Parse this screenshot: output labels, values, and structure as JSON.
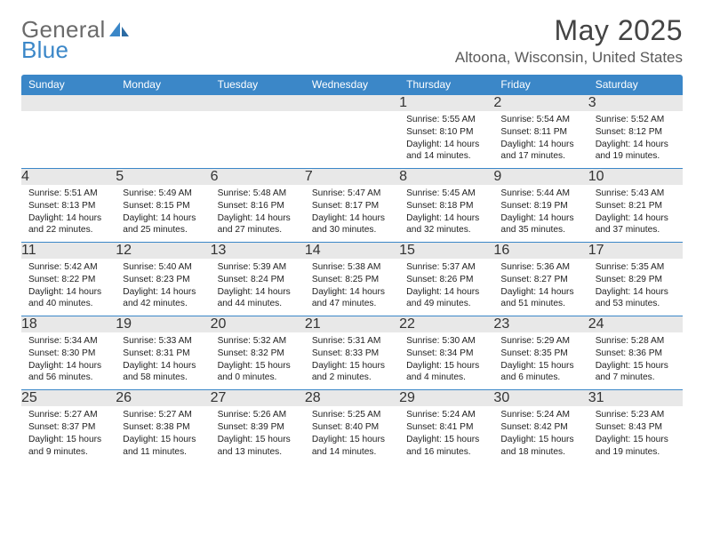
{
  "brand": {
    "word1": "General",
    "word2": "Blue"
  },
  "header": {
    "title": "May 2025",
    "location": "Altoona, Wisconsin, United States"
  },
  "colors": {
    "accent": "#3b87c8",
    "dayHeadBg": "#e8e8e8",
    "pageBg": "#ffffff",
    "textPrimary": "#333333",
    "textMuted": "#555555"
  },
  "dayNames": [
    "Sunday",
    "Monday",
    "Tuesday",
    "Wednesday",
    "Thursday",
    "Friday",
    "Saturday"
  ],
  "weeks": [
    {
      "days": [
        null,
        null,
        null,
        null,
        {
          "num": "1",
          "sunrise": "5:55 AM",
          "sunset": "8:10 PM",
          "daylight": "14 hours and 14 minutes."
        },
        {
          "num": "2",
          "sunrise": "5:54 AM",
          "sunset": "8:11 PM",
          "daylight": "14 hours and 17 minutes."
        },
        {
          "num": "3",
          "sunrise": "5:52 AM",
          "sunset": "8:12 PM",
          "daylight": "14 hours and 19 minutes."
        }
      ]
    },
    {
      "days": [
        {
          "num": "4",
          "sunrise": "5:51 AM",
          "sunset": "8:13 PM",
          "daylight": "14 hours and 22 minutes."
        },
        {
          "num": "5",
          "sunrise": "5:49 AM",
          "sunset": "8:15 PM",
          "daylight": "14 hours and 25 minutes."
        },
        {
          "num": "6",
          "sunrise": "5:48 AM",
          "sunset": "8:16 PM",
          "daylight": "14 hours and 27 minutes."
        },
        {
          "num": "7",
          "sunrise": "5:47 AM",
          "sunset": "8:17 PM",
          "daylight": "14 hours and 30 minutes."
        },
        {
          "num": "8",
          "sunrise": "5:45 AM",
          "sunset": "8:18 PM",
          "daylight": "14 hours and 32 minutes."
        },
        {
          "num": "9",
          "sunrise": "5:44 AM",
          "sunset": "8:19 PM",
          "daylight": "14 hours and 35 minutes."
        },
        {
          "num": "10",
          "sunrise": "5:43 AM",
          "sunset": "8:21 PM",
          "daylight": "14 hours and 37 minutes."
        }
      ]
    },
    {
      "days": [
        {
          "num": "11",
          "sunrise": "5:42 AM",
          "sunset": "8:22 PM",
          "daylight": "14 hours and 40 minutes."
        },
        {
          "num": "12",
          "sunrise": "5:40 AM",
          "sunset": "8:23 PM",
          "daylight": "14 hours and 42 minutes."
        },
        {
          "num": "13",
          "sunrise": "5:39 AM",
          "sunset": "8:24 PM",
          "daylight": "14 hours and 44 minutes."
        },
        {
          "num": "14",
          "sunrise": "5:38 AM",
          "sunset": "8:25 PM",
          "daylight": "14 hours and 47 minutes."
        },
        {
          "num": "15",
          "sunrise": "5:37 AM",
          "sunset": "8:26 PM",
          "daylight": "14 hours and 49 minutes."
        },
        {
          "num": "16",
          "sunrise": "5:36 AM",
          "sunset": "8:27 PM",
          "daylight": "14 hours and 51 minutes."
        },
        {
          "num": "17",
          "sunrise": "5:35 AM",
          "sunset": "8:29 PM",
          "daylight": "14 hours and 53 minutes."
        }
      ]
    },
    {
      "days": [
        {
          "num": "18",
          "sunrise": "5:34 AM",
          "sunset": "8:30 PM",
          "daylight": "14 hours and 56 minutes."
        },
        {
          "num": "19",
          "sunrise": "5:33 AM",
          "sunset": "8:31 PM",
          "daylight": "14 hours and 58 minutes."
        },
        {
          "num": "20",
          "sunrise": "5:32 AM",
          "sunset": "8:32 PM",
          "daylight": "15 hours and 0 minutes."
        },
        {
          "num": "21",
          "sunrise": "5:31 AM",
          "sunset": "8:33 PM",
          "daylight": "15 hours and 2 minutes."
        },
        {
          "num": "22",
          "sunrise": "5:30 AM",
          "sunset": "8:34 PM",
          "daylight": "15 hours and 4 minutes."
        },
        {
          "num": "23",
          "sunrise": "5:29 AM",
          "sunset": "8:35 PM",
          "daylight": "15 hours and 6 minutes."
        },
        {
          "num": "24",
          "sunrise": "5:28 AM",
          "sunset": "8:36 PM",
          "daylight": "15 hours and 7 minutes."
        }
      ]
    },
    {
      "days": [
        {
          "num": "25",
          "sunrise": "5:27 AM",
          "sunset": "8:37 PM",
          "daylight": "15 hours and 9 minutes."
        },
        {
          "num": "26",
          "sunrise": "5:27 AM",
          "sunset": "8:38 PM",
          "daylight": "15 hours and 11 minutes."
        },
        {
          "num": "27",
          "sunrise": "5:26 AM",
          "sunset": "8:39 PM",
          "daylight": "15 hours and 13 minutes."
        },
        {
          "num": "28",
          "sunrise": "5:25 AM",
          "sunset": "8:40 PM",
          "daylight": "15 hours and 14 minutes."
        },
        {
          "num": "29",
          "sunrise": "5:24 AM",
          "sunset": "8:41 PM",
          "daylight": "15 hours and 16 minutes."
        },
        {
          "num": "30",
          "sunrise": "5:24 AM",
          "sunset": "8:42 PM",
          "daylight": "15 hours and 18 minutes."
        },
        {
          "num": "31",
          "sunrise": "5:23 AM",
          "sunset": "8:43 PM",
          "daylight": "15 hours and 19 minutes."
        }
      ]
    }
  ],
  "labels": {
    "sunrise": "Sunrise:",
    "sunset": "Sunset:",
    "daylight": "Daylight:"
  },
  "typography": {
    "titleSize": 32,
    "locationSize": 17,
    "dayHeaderSize": 12,
    "bodySize": 10.2,
    "family": "Arial"
  },
  "layout": {
    "columns": 7,
    "rows": 5,
    "cellMinHeight": 88
  }
}
